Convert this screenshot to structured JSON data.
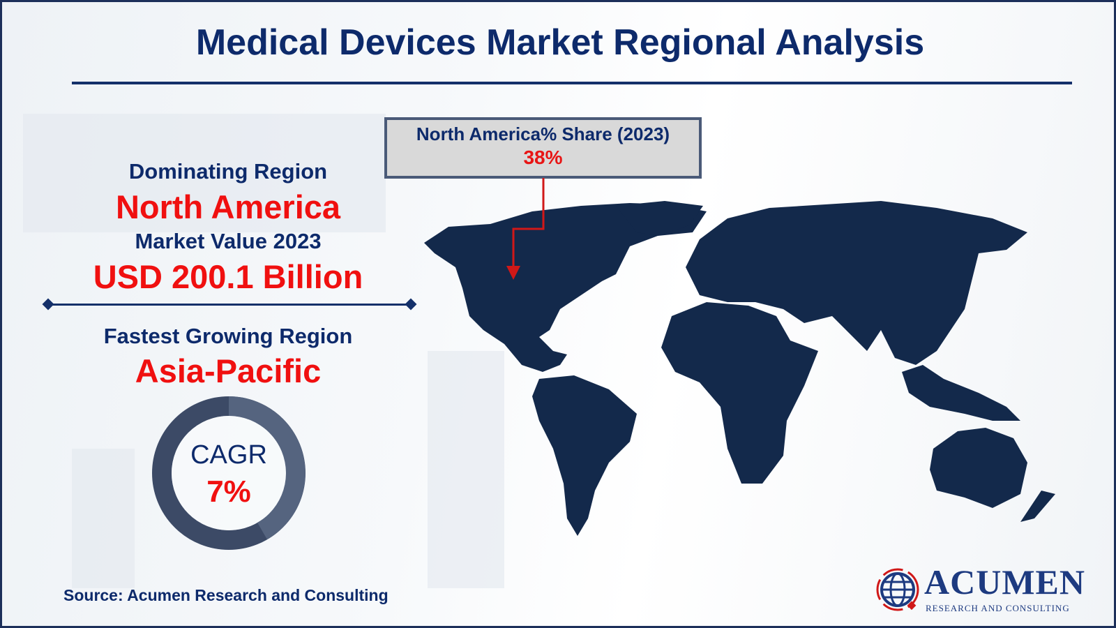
{
  "title": "Medical Devices Market Regional Analysis",
  "callout": {
    "label": "North America% Share (2023)",
    "value": "38%"
  },
  "left_panel": {
    "dominating_label": "Dominating Region",
    "dominating_region": "North America",
    "market_value_label": "Market Value 2023",
    "market_value": "USD 200.1 Billion",
    "fastest_label": "Fastest Growing Region",
    "fastest_region": "Asia-Pacific",
    "cagr_label": "CAGR",
    "cagr_value": "7%"
  },
  "source": "Source: Acumen Research and Consulting",
  "logo": {
    "name": "ACUMEN",
    "tagline": "RESEARCH AND CONSULTING"
  },
  "colors": {
    "navy": "#0d2a6b",
    "accent_red": "#f01010",
    "map": "#13294b",
    "donut_dark": "#3c4a66",
    "donut_light": "#55647f"
  }
}
